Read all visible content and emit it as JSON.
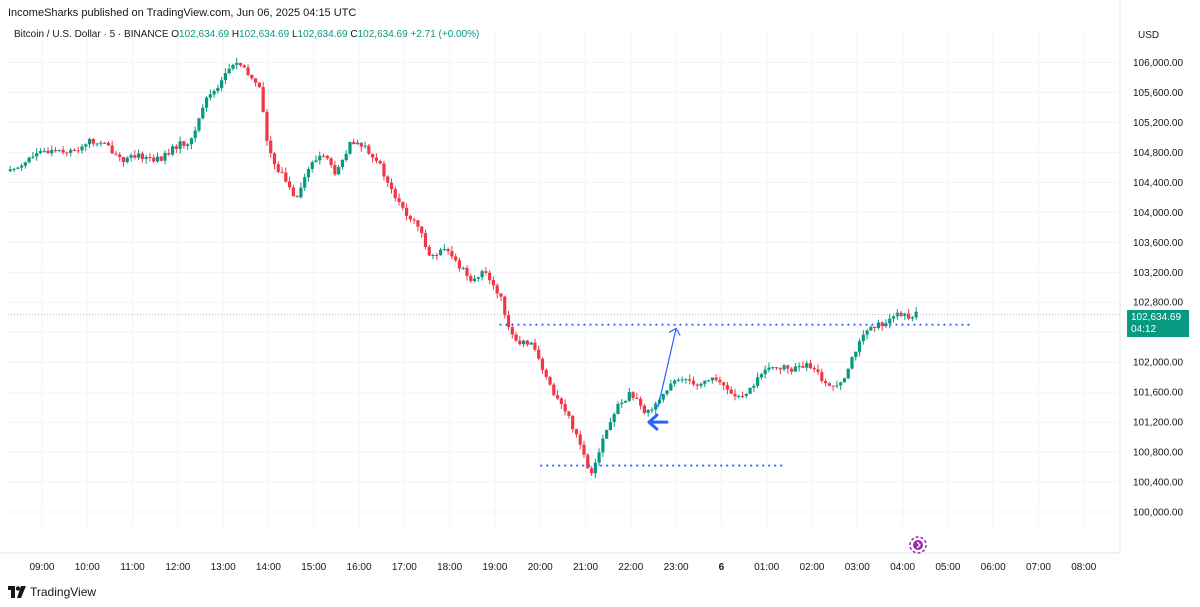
{
  "header": {
    "publisher_line": "IncomeSharks published on TradingView.com, Jun 06, 2025 04:15 UTC"
  },
  "legend": {
    "symbol": "Bitcoin / U.S. Dollar · 5 · BINANCE",
    "open_label": "O",
    "open": "102,634.69",
    "high_label": "H",
    "high": "102,634.69",
    "low_label": "L",
    "low": "102,634.69",
    "close_label": "C",
    "close": "102,634.69",
    "change": "+2.71 (+0.00%)"
  },
  "axis": {
    "currency": "USD"
  },
  "price_tag": {
    "price": "102,634.69",
    "countdown": "04:12"
  },
  "footer": {
    "brand": "TradingView"
  },
  "colors": {
    "up": "#089981",
    "down": "#f23645",
    "annotation": "#2962ff",
    "grid": "#f0f3fa"
  },
  "chart_data": {
    "type": "candlestick",
    "title": "Bitcoin / U.S. Dollar · 5 · BINANCE",
    "ylabel": "USD",
    "ylim": [
      99800,
      106300
    ],
    "y_ticks": [
      "106,000.00",
      "105,600.00",
      "105,200.00",
      "104,800.00",
      "104,400.00",
      "104,000.00",
      "103,600.00",
      "103,200.00",
      "102,800.00",
      "102,400.00",
      "102,000.00",
      "101,600.00",
      "101,200.00",
      "100,800.00",
      "100,400.00",
      "100,000.00"
    ],
    "y_tick_values": [
      106000,
      105600,
      105200,
      104800,
      104400,
      104000,
      103600,
      103200,
      102800,
      102400,
      102000,
      101600,
      101200,
      100800,
      100400,
      100000
    ],
    "x_ticks": [
      "09:00",
      "10:00",
      "11:00",
      "12:00",
      "13:00",
      "14:00",
      "15:00",
      "16:00",
      "17:00",
      "18:00",
      "19:00",
      "20:00",
      "21:00",
      "22:00",
      "23:00",
      "6",
      "01:00",
      "02:00",
      "03:00",
      "04:00",
      "05:00",
      "06:00",
      "07:00",
      "08:00"
    ],
    "x_tick_hours": [
      9,
      10,
      11,
      12,
      13,
      14,
      15,
      16,
      17,
      18,
      19,
      20,
      21,
      22,
      23,
      24,
      25,
      26,
      27,
      28,
      29,
      30,
      31,
      32
    ],
    "x_range_hours": [
      8.25,
      32.8
    ],
    "price_path": [
      [
        8.3,
        104550
      ],
      [
        8.8,
        104750
      ],
      [
        9.3,
        104850
      ],
      [
        9.7,
        104800
      ],
      [
        10.0,
        104950
      ],
      [
        10.4,
        104900
      ],
      [
        10.8,
        104700
      ],
      [
        11.2,
        104750
      ],
      [
        11.6,
        104700
      ],
      [
        12.0,
        104900
      ],
      [
        12.3,
        104950
      ],
      [
        12.6,
        105500
      ],
      [
        12.9,
        105700
      ],
      [
        13.1,
        105900
      ],
      [
        13.3,
        106000
      ],
      [
        13.6,
        105800
      ],
      [
        13.8,
        105700
      ],
      [
        14.0,
        104800
      ],
      [
        14.3,
        104500
      ],
      [
        14.6,
        104200
      ],
      [
        14.9,
        104600
      ],
      [
        15.2,
        104800
      ],
      [
        15.5,
        104500
      ],
      [
        15.8,
        104900
      ],
      [
        16.1,
        104900
      ],
      [
        16.4,
        104700
      ],
      [
        16.7,
        104300
      ],
      [
        17.0,
        104000
      ],
      [
        17.3,
        103800
      ],
      [
        17.6,
        103400
      ],
      [
        17.9,
        103500
      ],
      [
        18.2,
        103300
      ],
      [
        18.5,
        103100
      ],
      [
        18.8,
        103200
      ],
      [
        19.1,
        102900
      ],
      [
        19.3,
        102500
      ],
      [
        19.5,
        102200
      ],
      [
        19.8,
        102300
      ],
      [
        20.1,
        101800
      ],
      [
        20.4,
        101500
      ],
      [
        20.6,
        101300
      ],
      [
        20.9,
        100900
      ],
      [
        21.1,
        100500
      ],
      [
        21.4,
        101000
      ],
      [
        21.7,
        101400
      ],
      [
        22.0,
        101600
      ],
      [
        22.3,
        101300
      ],
      [
        22.6,
        101500
      ],
      [
        22.9,
        101700
      ],
      [
        23.2,
        101800
      ],
      [
        23.5,
        101700
      ],
      [
        23.8,
        101800
      ],
      [
        24.2,
        101600
      ],
      [
        24.5,
        101500
      ],
      [
        24.8,
        101800
      ],
      [
        25.2,
        101950
      ],
      [
        25.5,
        101900
      ],
      [
        25.9,
        101950
      ],
      [
        26.2,
        101800
      ],
      [
        26.4,
        101650
      ],
      [
        26.7,
        101800
      ],
      [
        26.9,
        102100
      ],
      [
        27.2,
        102400
      ],
      [
        27.5,
        102500
      ],
      [
        27.8,
        102620
      ],
      [
        28.1,
        102620
      ],
      [
        28.3,
        102634.69
      ]
    ],
    "annotations": {
      "resistance_line": {
        "price": 102500,
        "x_start": 19.1,
        "x_end": 29.5
      },
      "support_line": {
        "price": 100620,
        "x_start": 20.0,
        "x_end": 25.4
      },
      "last_price_line": 102634.69,
      "arrow_up": {
        "from": [
          22.6,
          101400
        ],
        "to": [
          23.0,
          102450
        ]
      },
      "arrow_left": {
        "at": [
          22.4,
          101200
        ]
      }
    }
  }
}
